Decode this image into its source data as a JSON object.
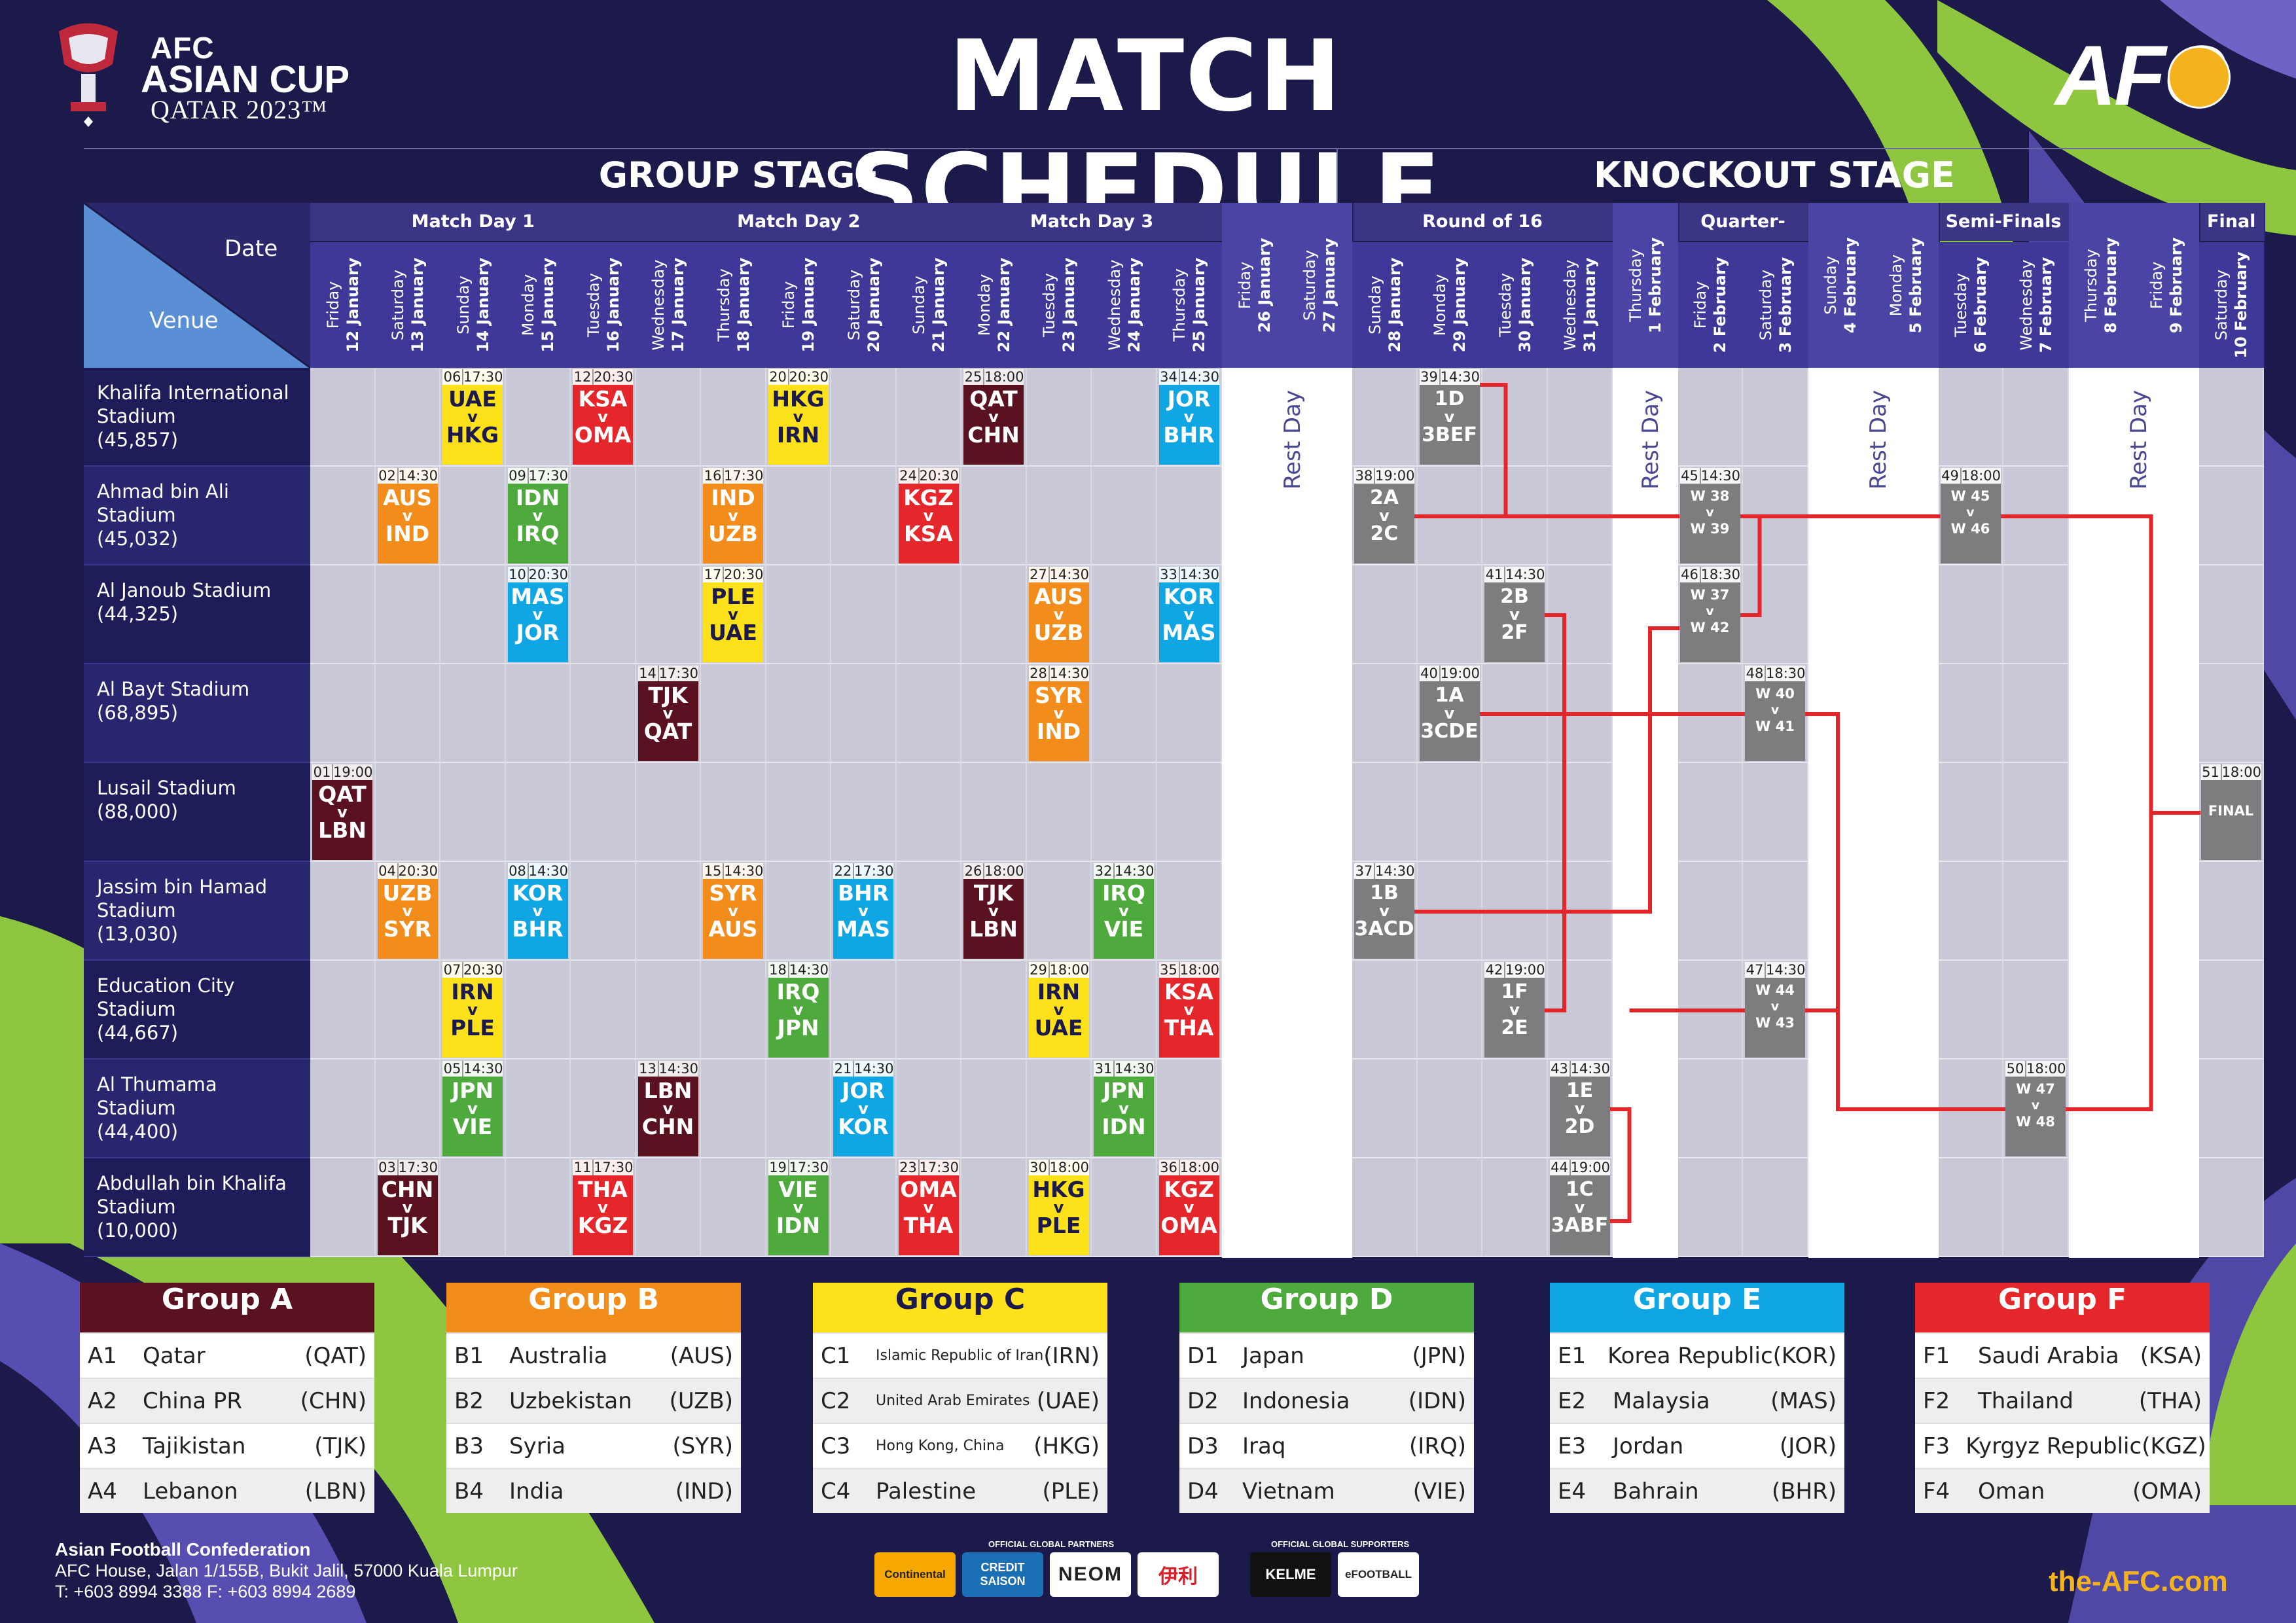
{
  "title": "MATCH SCHEDULE",
  "logo": {
    "line1": "AFC",
    "line2": "ASIAN CUP",
    "line3": "QATAR 2023™",
    "right": "AFC"
  },
  "stages": {
    "group": "GROUP STAGE",
    "knockout": "KNOCKOUT STAGE"
  },
  "corner": {
    "date": "Date",
    "venue": "Venue"
  },
  "header_groups": [
    "Match Day 1",
    "Match Day 2",
    "Match Day 3",
    "Round of 16",
    "Quarter-Finals",
    "Semi-Finals",
    "Final"
  ],
  "dates": [
    {
      "day": "Friday",
      "date": "12 January"
    },
    {
      "day": "Saturday",
      "date": "13 January"
    },
    {
      "day": "Sunday",
      "date": "14 January"
    },
    {
      "day": "Monday",
      "date": "15 January"
    },
    {
      "day": "Tuesday",
      "date": "16 January"
    },
    {
      "day": "Wednesday",
      "date": "17 January"
    },
    {
      "day": "Thursday",
      "date": "18 January"
    },
    {
      "day": "Friday",
      "date": "19 January"
    },
    {
      "day": "Saturday",
      "date": "20 January"
    },
    {
      "day": "Sunday",
      "date": "21 January"
    },
    {
      "day": "Monday",
      "date": "22 January"
    },
    {
      "day": "Tuesday",
      "date": "23 January"
    },
    {
      "day": "Wednesday",
      "date": "24 January"
    },
    {
      "day": "Thursday",
      "date": "25 January"
    },
    {
      "day": "Friday",
      "date": "26 January"
    },
    {
      "day": "Saturday",
      "date": "27 January"
    },
    {
      "day": "Sunday",
      "date": "28 January"
    },
    {
      "day": "Monday",
      "date": "29 January"
    },
    {
      "day": "Tuesday",
      "date": "30 January"
    },
    {
      "day": "Wednesday",
      "date": "31 January"
    },
    {
      "day": "Thursday",
      "date": "1 February"
    },
    {
      "day": "Friday",
      "date": "2 February"
    },
    {
      "day": "Saturday",
      "date": "3 February"
    },
    {
      "day": "Sunday",
      "date": "4 February"
    },
    {
      "day": "Monday",
      "date": "5 February"
    },
    {
      "day": "Tuesday",
      "date": "6 February"
    },
    {
      "day": "Wednesday",
      "date": "7 February"
    },
    {
      "day": "Thursday",
      "date": "8 February"
    },
    {
      "day": "Friday",
      "date": "9 February"
    },
    {
      "day": "Saturday",
      "date": "10 February"
    }
  ],
  "rest_day_label": "Rest Day",
  "venues": [
    {
      "name": "Khalifa International Stadium",
      "capacity": "(45,857)"
    },
    {
      "name": "Ahmad bin Ali Stadium",
      "capacity": "(45,032)"
    },
    {
      "name": "Al Janoub Stadium",
      "capacity": "(44,325)"
    },
    {
      "name": "Al Bayt Stadium",
      "capacity": "(68,895)"
    },
    {
      "name": "Lusail Stadium",
      "capacity": "(88,000)"
    },
    {
      "name": "Jassim bin Hamad Stadium",
      "capacity": "(13,030)"
    },
    {
      "name": "Education City Stadium",
      "capacity": "(44,667)"
    },
    {
      "name": "Al Thumama Stadium",
      "capacity": "(44,400)"
    },
    {
      "name": "Abdullah bin Khalifa Stadium",
      "capacity": "(10,000)"
    }
  ],
  "colors": {
    "A": "#5a1220",
    "B": "#f28c1a",
    "C": "#fde11a",
    "D": "#4faa3e",
    "E": "#10a6e3",
    "F": "#e5262b",
    "KO": "#7d7d7f",
    "bracket": "#e3262b"
  },
  "matches": [
    {
      "num": "01",
      "time": "19:00",
      "home": "QAT",
      "away": "LBN",
      "day": 0,
      "venue": 4,
      "group": "A"
    },
    {
      "num": "02",
      "time": "14:30",
      "home": "AUS",
      "away": "IND",
      "day": 1,
      "venue": 1,
      "group": "B"
    },
    {
      "num": "03",
      "time": "17:30",
      "home": "CHN",
      "away": "TJK",
      "day": 1,
      "venue": 8,
      "group": "A"
    },
    {
      "num": "04",
      "time": "20:30",
      "home": "UZB",
      "away": "SYR",
      "day": 1,
      "venue": 5,
      "group": "B"
    },
    {
      "num": "05",
      "time": "14:30",
      "home": "JPN",
      "away": "VIE",
      "day": 2,
      "venue": 7,
      "group": "D"
    },
    {
      "num": "06",
      "time": "17:30",
      "home": "UAE",
      "away": "HKG",
      "day": 2,
      "venue": 0,
      "group": "C"
    },
    {
      "num": "07",
      "time": "20:30",
      "home": "IRN",
      "away": "PLE",
      "day": 2,
      "venue": 6,
      "group": "C"
    },
    {
      "num": "08",
      "time": "14:30",
      "home": "KOR",
      "away": "BHR",
      "day": 3,
      "venue": 5,
      "group": "E"
    },
    {
      "num": "09",
      "time": "17:30",
      "home": "IDN",
      "away": "IRQ",
      "day": 3,
      "venue": 1,
      "group": "D"
    },
    {
      "num": "10",
      "time": "20:30",
      "home": "MAS",
      "away": "JOR",
      "day": 3,
      "venue": 2,
      "group": "E"
    },
    {
      "num": "11",
      "time": "17:30",
      "home": "THA",
      "away": "KGZ",
      "day": 4,
      "venue": 8,
      "group": "F"
    },
    {
      "num": "12",
      "time": "20:30",
      "home": "KSA",
      "away": "OMA",
      "day": 4,
      "venue": 0,
      "group": "F"
    },
    {
      "num": "13",
      "time": "14:30",
      "home": "LBN",
      "away": "CHN",
      "day": 5,
      "venue": 7,
      "group": "A"
    },
    {
      "num": "14",
      "time": "17:30",
      "home": "TJK",
      "away": "QAT",
      "day": 5,
      "venue": 3,
      "group": "A"
    },
    {
      "num": "15",
      "time": "14:30",
      "home": "SYR",
      "away": "AUS",
      "day": 6,
      "venue": 5,
      "group": "B"
    },
    {
      "num": "16",
      "time": "17:30",
      "home": "IND",
      "away": "UZB",
      "day": 6,
      "venue": 1,
      "group": "B"
    },
    {
      "num": "17",
      "time": "20:30",
      "home": "PLE",
      "away": "UAE",
      "day": 6,
      "venue": 2,
      "group": "C"
    },
    {
      "num": "18",
      "time": "14:30",
      "home": "IRQ",
      "away": "JPN",
      "day": 7,
      "venue": 6,
      "group": "D"
    },
    {
      "num": "19",
      "time": "17:30",
      "home": "VIE",
      "away": "IDN",
      "day": 7,
      "venue": 8,
      "group": "D"
    },
    {
      "num": "20",
      "time": "20:30",
      "home": "HKG",
      "away": "IRN",
      "day": 7,
      "venue": 0,
      "group": "C"
    },
    {
      "num": "21",
      "time": "14:30",
      "home": "JOR",
      "away": "KOR",
      "day": 8,
      "venue": 7,
      "group": "E"
    },
    {
      "num": "22",
      "time": "17:30",
      "home": "BHR",
      "away": "MAS",
      "day": 8,
      "venue": 5,
      "group": "E"
    },
    {
      "num": "23",
      "time": "17:30",
      "home": "OMA",
      "away": "THA",
      "day": 9,
      "venue": 8,
      "group": "F"
    },
    {
      "num": "24",
      "time": "20:30",
      "home": "KGZ",
      "away": "KSA",
      "day": 9,
      "venue": 1,
      "group": "F"
    },
    {
      "num": "25",
      "time": "18:00",
      "home": "QAT",
      "away": "CHN",
      "day": 10,
      "venue": 0,
      "group": "A"
    },
    {
      "num": "26",
      "time": "18:00",
      "home": "TJK",
      "away": "LBN",
      "day": 10,
      "venue": 5,
      "group": "A"
    },
    {
      "num": "27",
      "time": "14:30",
      "home": "AUS",
      "away": "UZB",
      "day": 11,
      "venue": 2,
      "group": "B"
    },
    {
      "num": "28",
      "time": "14:30",
      "home": "SYR",
      "away": "IND",
      "day": 11,
      "venue": 3,
      "group": "B"
    },
    {
      "num": "29",
      "time": "18:00",
      "home": "IRN",
      "away": "UAE",
      "day": 11,
      "venue": 6,
      "group": "C"
    },
    {
      "num": "30",
      "time": "18:00",
      "home": "HKG",
      "away": "PLE",
      "day": 11,
      "venue": 8,
      "group": "C"
    },
    {
      "num": "31",
      "time": "14:30",
      "home": "JPN",
      "away": "IDN",
      "day": 12,
      "venue": 7,
      "group": "D"
    },
    {
      "num": "32",
      "time": "14:30",
      "home": "IRQ",
      "away": "VIE",
      "day": 12,
      "venue": 5,
      "group": "D"
    },
    {
      "num": "33",
      "time": "14:30",
      "home": "KOR",
      "away": "MAS",
      "day": 13,
      "venue": 2,
      "group": "E"
    },
    {
      "num": "34",
      "time": "14:30",
      "home": "JOR",
      "away": "BHR",
      "day": 13,
      "venue": 0,
      "group": "E"
    },
    {
      "num": "35",
      "time": "18:00",
      "home": "KSA",
      "away": "THA",
      "day": 13,
      "venue": 6,
      "group": "F"
    },
    {
      "num": "36",
      "time": "18:00",
      "home": "KGZ",
      "away": "OMA",
      "day": 13,
      "venue": 8,
      "group": "F"
    },
    {
      "num": "37",
      "time": "14:30",
      "home": "1B",
      "away": "3ACD",
      "day": 16,
      "venue": 5,
      "group": "KO"
    },
    {
      "num": "38",
      "time": "19:00",
      "home": "2A",
      "away": "2C",
      "day": 16,
      "venue": 1,
      "group": "KO"
    },
    {
      "num": "39",
      "time": "14:30",
      "home": "1D",
      "away": "3BEF",
      "day": 17,
      "venue": 0,
      "group": "KO"
    },
    {
      "num": "40",
      "time": "19:00",
      "home": "1A",
      "away": "3CDE",
      "day": 17,
      "venue": 3,
      "group": "KO"
    },
    {
      "num": "41",
      "time": "14:30",
      "home": "2B",
      "away": "2F",
      "day": 18,
      "venue": 2,
      "group": "KO"
    },
    {
      "num": "42",
      "time": "19:00",
      "home": "1F",
      "away": "2E",
      "day": 18,
      "venue": 6,
      "group": "KO"
    },
    {
      "num": "43",
      "time": "14:30",
      "home": "1E",
      "away": "2D",
      "day": 19,
      "venue": 7,
      "group": "KO"
    },
    {
      "num": "44",
      "time": "19:00",
      "home": "1C",
      "away": "3ABF",
      "day": 19,
      "venue": 8,
      "group": "KO"
    },
    {
      "num": "45",
      "time": "14:30",
      "home": "W 38",
      "away": "W 39",
      "day": 21,
      "venue": 1,
      "group": "KO",
      "small": true
    },
    {
      "num": "46",
      "time": "18:30",
      "home": "W 37",
      "away": "W 42",
      "day": 21,
      "venue": 2,
      "group": "KO",
      "small": true
    },
    {
      "num": "47",
      "time": "14:30",
      "home": "W 44",
      "away": "W 43",
      "day": 22,
      "venue": 6,
      "group": "KO",
      "small": true
    },
    {
      "num": "48",
      "time": "18:30",
      "home": "W 40",
      "away": "W 41",
      "day": 22,
      "venue": 3,
      "group": "KO",
      "small": true
    },
    {
      "num": "49",
      "time": "18:00",
      "home": "W 45",
      "away": "W 46",
      "day": 25,
      "venue": 1,
      "group": "KO",
      "small": true
    },
    {
      "num": "50",
      "time": "18:00",
      "home": "W 47",
      "away": "W 48",
      "day": 26,
      "venue": 7,
      "group": "KO",
      "small": true
    },
    {
      "num": "51",
      "time": "18:00",
      "home": "FINAL",
      "away": "",
      "day": 29,
      "venue": 4,
      "group": "KO",
      "small": true,
      "final": true
    }
  ],
  "groups": [
    {
      "title": "Group A",
      "color": "#5a1220",
      "teams": [
        [
          "A1",
          "Qatar",
          "(QAT)"
        ],
        [
          "A2",
          "China PR",
          "(CHN)"
        ],
        [
          "A3",
          "Tajikistan",
          "(TJK)"
        ],
        [
          "A4",
          "Lebanon",
          "(LBN)"
        ]
      ]
    },
    {
      "title": "Group B",
      "color": "#f28c1a",
      "teams": [
        [
          "B1",
          "Australia",
          "(AUS)"
        ],
        [
          "B2",
          "Uzbekistan",
          "(UZB)"
        ],
        [
          "B3",
          "Syria",
          "(SYR)"
        ],
        [
          "B4",
          "India",
          "(IND)"
        ]
      ]
    },
    {
      "title": "Group C",
      "color": "#fde11a",
      "teams": [
        [
          "C1",
          "Islamic Republic of Iran",
          "(IRN)"
        ],
        [
          "C2",
          "United Arab Emirates",
          "(UAE)"
        ],
        [
          "C3",
          "Hong Kong, China",
          "(HKG)"
        ],
        [
          "C4",
          "Palestine",
          "(PLE)"
        ]
      ]
    },
    {
      "title": "Group D",
      "color": "#4faa3e",
      "teams": [
        [
          "D1",
          "Japan",
          "(JPN)"
        ],
        [
          "D2",
          "Indonesia",
          "(IDN)"
        ],
        [
          "D3",
          "Iraq",
          "(IRQ)"
        ],
        [
          "D4",
          "Vietnam",
          "(VIE)"
        ]
      ]
    },
    {
      "title": "Group E",
      "color": "#10a6e3",
      "teams": [
        [
          "E1",
          "Korea Republic",
          "(KOR)"
        ],
        [
          "E2",
          "Malaysia",
          "(MAS)"
        ],
        [
          "E3",
          "Jordan",
          "(JOR)"
        ],
        [
          "E4",
          "Bahrain",
          "(BHR)"
        ]
      ]
    },
    {
      "title": "Group F",
      "color": "#e5262b",
      "teams": [
        [
          "F1",
          "Saudi Arabia",
          "(KSA)"
        ],
        [
          "F2",
          "Thailand",
          "(THA)"
        ],
        [
          "F3",
          "Kyrgyz Republic",
          "(KGZ)"
        ],
        [
          "F4",
          "Oman",
          "(OMA)"
        ]
      ]
    }
  ],
  "footer": {
    "org_name": "Asian Football Confederation",
    "address": "AFC House, Jalan 1/155B, Bukit Jalil, 57000 Kuala Lumpur",
    "phone": "T: +603 8994 3388  F: +603 8994 2689",
    "partners_label": "OFFICIAL GLOBAL PARTNERS",
    "supporters_label": "OFFICIAL GLOBAL SUPPORTERS",
    "partners": [
      "Continental",
      "CREDIT SAISON",
      "NEOM",
      "伊利"
    ],
    "supporters": [
      "KELME",
      "eFOOTBALL"
    ],
    "url": "the-AFC.com"
  }
}
